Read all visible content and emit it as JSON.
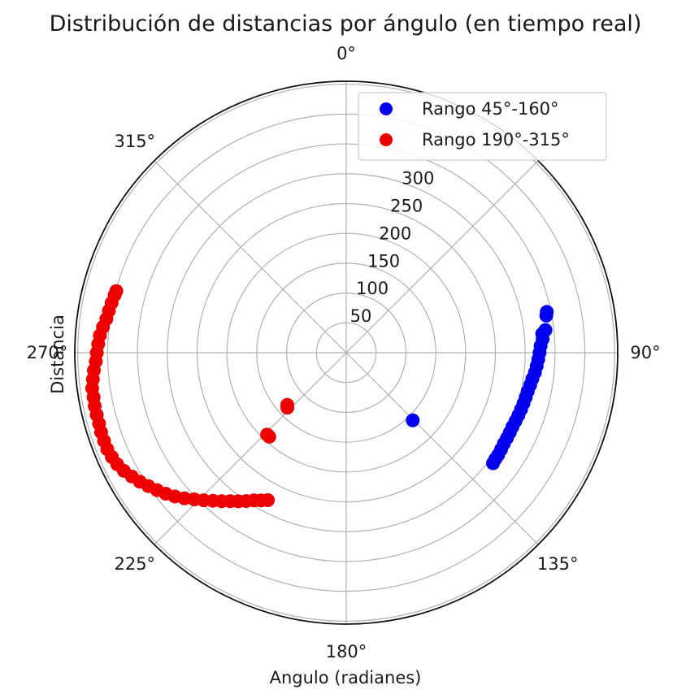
{
  "chart_data": {
    "type": "scatter",
    "projection": "polar",
    "title": "Distribución de distancias por ángulo (en tiempo real)",
    "xlabel": "Angulo (radianes)",
    "ylabel": "Distancia",
    "theta_zero_location": "N",
    "theta_direction": "clockwise",
    "theta_ticks": [
      {
        "deg": 0,
        "label": "0°"
      },
      {
        "deg": 45,
        "label": ""
      },
      {
        "deg": 90,
        "label": "90°"
      },
      {
        "deg": 135,
        "label": "135°"
      },
      {
        "deg": 180,
        "label": "180°"
      },
      {
        "deg": 225,
        "label": "225°"
      },
      {
        "deg": 270,
        "label": "270°"
      },
      {
        "deg": 315,
        "label": "315°"
      }
    ],
    "r_ticks": [
      {
        "value": 50,
        "label": "50"
      },
      {
        "value": 100,
        "label": "100"
      },
      {
        "value": 150,
        "label": "150"
      },
      {
        "value": 200,
        "label": "200"
      },
      {
        "value": 250,
        "label": "250"
      },
      {
        "value": 300,
        "label": "300"
      },
      {
        "value": 350,
        "label": ""
      },
      {
        "value": 400,
        "label": ""
      },
      {
        "value": 450,
        "label": ""
      }
    ],
    "r_label_angle_deg": 22.5,
    "rlim": [
      0,
      455
    ],
    "grid": true,
    "legend_position": "top-right",
    "series": [
      {
        "name": "Rango 45°-160°",
        "color": "#0000ee",
        "points": [
          [
            78.5,
            343
          ],
          [
            79.5,
            341
          ],
          [
            83.5,
            336
          ],
          [
            84.5,
            330
          ],
          [
            86,
            330
          ],
          [
            88,
            326
          ],
          [
            90,
            324
          ],
          [
            92,
            322
          ],
          [
            94,
            320
          ],
          [
            96,
            318
          ],
          [
            98,
            315
          ],
          [
            100,
            313
          ],
          [
            102,
            311
          ],
          [
            104,
            310
          ],
          [
            106,
            309
          ],
          [
            108,
            308
          ],
          [
            110,
            307
          ],
          [
            112,
            306
          ],
          [
            114,
            305
          ],
          [
            116,
            305
          ],
          [
            118,
            305
          ],
          [
            120,
            305
          ],
          [
            122,
            306
          ],
          [
            124,
            307
          ],
          [
            125.5,
            307
          ],
          [
            127,
            308
          ],
          [
            135.5,
            159
          ]
        ]
      },
      {
        "name": "Rango 190°-315°",
        "color": "#ee0000",
        "points": [
          [
            222.5,
            191
          ],
          [
            224,
            191
          ],
          [
            227,
            135
          ],
          [
            228.5,
            132
          ],
          [
            208,
            280
          ],
          [
            210,
            286
          ],
          [
            212,
            292
          ],
          [
            214,
            300
          ],
          [
            216,
            308
          ],
          [
            218,
            316
          ],
          [
            220,
            325
          ],
          [
            222,
            334
          ],
          [
            224,
            344
          ],
          [
            226,
            354
          ],
          [
            228,
            365
          ],
          [
            230,
            375
          ],
          [
            232,
            384
          ],
          [
            234,
            392
          ],
          [
            236,
            400
          ],
          [
            238,
            408
          ],
          [
            240,
            415
          ],
          [
            242,
            422
          ],
          [
            244,
            427
          ],
          [
            246,
            430
          ],
          [
            248,
            432
          ],
          [
            250,
            432
          ],
          [
            252,
            432
          ],
          [
            254,
            431
          ],
          [
            256,
            431
          ],
          [
            258,
            431
          ],
          [
            260,
            430
          ],
          [
            262,
            430
          ],
          [
            264,
            427
          ],
          [
            266,
            424
          ],
          [
            268,
            420
          ],
          [
            270,
            418
          ],
          [
            272,
            416
          ],
          [
            274,
            414
          ],
          [
            276,
            410
          ],
          [
            278,
            406
          ],
          [
            280,
            404
          ],
          [
            282,
            402
          ],
          [
            284,
            400
          ],
          [
            285,
            399
          ]
        ]
      }
    ]
  }
}
